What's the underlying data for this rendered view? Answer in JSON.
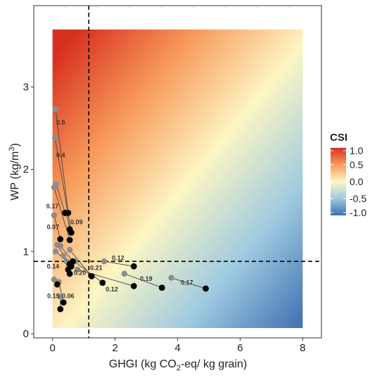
{
  "chart_data": {
    "type": "scatter",
    "xlabel_main": "GHGI (kg CO",
    "xlabel_sub": "2",
    "xlabel_rest": "-eq/ kg grain)",
    "ylabel_main": "WP (kg/m",
    "ylabel_sup": "3",
    "ylabel_close": ")",
    "xlim": [
      -0.6,
      8.6
    ],
    "ylim": [
      -0.05,
      3.99
    ],
    "data_extent": {
      "x": [
        0,
        8
      ],
      "y": [
        0.07,
        3.7
      ]
    },
    "x_ticks": [
      0,
      2,
      4,
      6,
      8
    ],
    "y_ticks": [
      0,
      1,
      2,
      3
    ],
    "x_tick_labels": [
      "0",
      "2",
      "4",
      "6",
      "8"
    ],
    "y_tick_labels": [
      "0",
      "1",
      "2",
      "3"
    ],
    "reference_lines": {
      "x": 1.16,
      "y": 0.88
    },
    "legend": {
      "title": "CSI",
      "labels": [
        "1.0",
        "0.5",
        "0.0",
        "-0.5",
        "-1.0"
      ],
      "values": [
        1.0,
        0.5,
        0.0,
        -0.5,
        -1.0
      ],
      "placement": "right"
    },
    "colors": {
      "high": "#d7301f",
      "mid": "#fdf6c4",
      "low": "#3f6fb0",
      "point_start": "#8c8c8c",
      "point_end": "#000000"
    },
    "pairs": [
      {
        "from": [
          0.1,
          2.73
        ],
        "to": [
          0.5,
          1.47
        ],
        "label": "0.5",
        "label_at": [
          0.12,
          2.57
        ]
      },
      {
        "from": [
          0.08,
          2.38
        ],
        "to": [
          0.6,
          1.23
        ],
        "label": "0.4",
        "label_at": [
          0.12,
          2.17
        ]
      },
      {
        "from": [
          0.12,
          1.82
        ],
        "to": [
          0.4,
          1.47
        ],
        "label": "",
        "label_at": null
      },
      {
        "from": [
          0.05,
          1.78
        ],
        "to": [
          0.55,
          1.14
        ],
        "label": "0.17",
        "label_at": [
          -0.2,
          1.55
        ]
      },
      {
        "from": [
          0.05,
          1.44
        ],
        "to": [
          0.25,
          1.15
        ],
        "label": "0.07",
        "label_at": [
          -0.18,
          1.3
        ]
      },
      {
        "from": [
          0.45,
          1.46
        ],
        "to": [
          0.55,
          1.27
        ],
        "label": "0.09",
        "label_at": [
          0.57,
          1.36
        ]
      },
      {
        "from": [
          0.15,
          1.08
        ],
        "to": [
          0.6,
          0.82
        ],
        "label": "0.14",
        "label_at": [
          -0.18,
          0.82
        ]
      },
      {
        "from": [
          0.1,
          1.0
        ],
        "to": [
          0.55,
          0.85
        ],
        "label": "",
        "label_at": null
      },
      {
        "from": [
          0.25,
          1.07
        ],
        "to": [
          0.65,
          0.88
        ],
        "label": "",
        "label_at": null
      },
      {
        "from": [
          0.35,
          0.95
        ],
        "to": [
          0.5,
          0.78
        ],
        "label": "0.20",
        "label_at": [
          0.68,
          0.74
        ]
      },
      {
        "from": [
          0.55,
          1.02
        ],
        "to": [
          1.25,
          0.7
        ],
        "label": "",
        "label_at": null
      },
      {
        "from": [
          0.7,
          0.88
        ],
        "to": [
          1.6,
          0.62
        ],
        "label": "0.21",
        "label_at": [
          1.2,
          0.8
        ]
      },
      {
        "from": [
          0.8,
          0.78
        ],
        "to": [
          2.6,
          0.58
        ],
        "label": "0.12",
        "label_at": [
          1.7,
          0.54
        ]
      },
      {
        "from": [
          1.65,
          0.88
        ],
        "to": [
          2.6,
          0.82
        ],
        "label": "0.12",
        "label_at": [
          1.9,
          0.92
        ]
      },
      {
        "from": [
          2.3,
          0.73
        ],
        "to": [
          3.5,
          0.56
        ],
        "label": "0.19",
        "label_at": [
          2.8,
          0.67
        ]
      },
      {
        "from": [
          3.8,
          0.68
        ],
        "to": [
          4.9,
          0.55
        ],
        "label": "0.17",
        "label_at": [
          4.1,
          0.62
        ]
      },
      {
        "from": [
          0.05,
          0.66
        ],
        "to": [
          0.15,
          0.6
        ],
        "label": "0.15",
        "label_at": [
          -0.17,
          0.46
        ]
      },
      {
        "from": [
          0.2,
          0.63
        ],
        "to": [
          0.35,
          0.38
        ],
        "label": "0.06",
        "label_at": [
          0.3,
          0.46
        ]
      },
      {
        "from": [
          0.25,
          0.45
        ],
        "to": [
          0.25,
          0.3
        ],
        "label": "",
        "label_at": null
      },
      {
        "from": [
          0.45,
          0.88
        ],
        "to": [
          0.55,
          0.73
        ],
        "label": "",
        "label_at": null
      }
    ]
  }
}
